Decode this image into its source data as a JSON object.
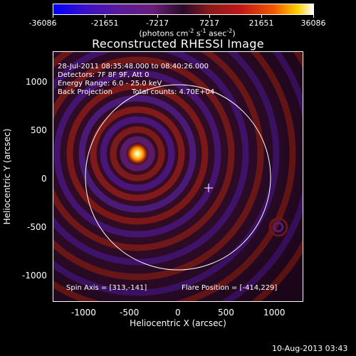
{
  "colorbar": {
    "tick_labels": [
      "-36086",
      "-21651",
      "-7217",
      "7217",
      "21651",
      "36086"
    ],
    "units_text": "(photons cm",
    "units_exp1": "-2",
    "units_mid": " s",
    "units_exp2": "-1",
    "units_mid2": " asec",
    "units_exp3": "-2",
    "units_end": ")"
  },
  "title": "Reconstructed RHESSI Image",
  "annotations": {
    "time_range": "28-Jul-2011 08:35:48.000 to 08:40:26.000",
    "detectors": "Detectors: 7F 8F 9F, Att 0",
    "energy_range": "Energy Range: 6.0 - 25.0 keV",
    "method": "Back Projection",
    "total_counts": "Total counts: 4.70E+04",
    "spin_axis": "Spin Axis = [313,-141]",
    "flare_position": "Flare Position = [-414,229]"
  },
  "axes": {
    "xlabel": "Heliocentric X (arcsec)",
    "ylabel": "Heliocentric Y (arcsec)",
    "xticks": [
      "-1000",
      "-500",
      "0",
      "500",
      "1000"
    ],
    "yticks": [
      "1000",
      "500",
      "0",
      "-500",
      "-1000"
    ]
  },
  "footer": {
    "timestamp": "10-Aug-2013 03:43"
  }
}
